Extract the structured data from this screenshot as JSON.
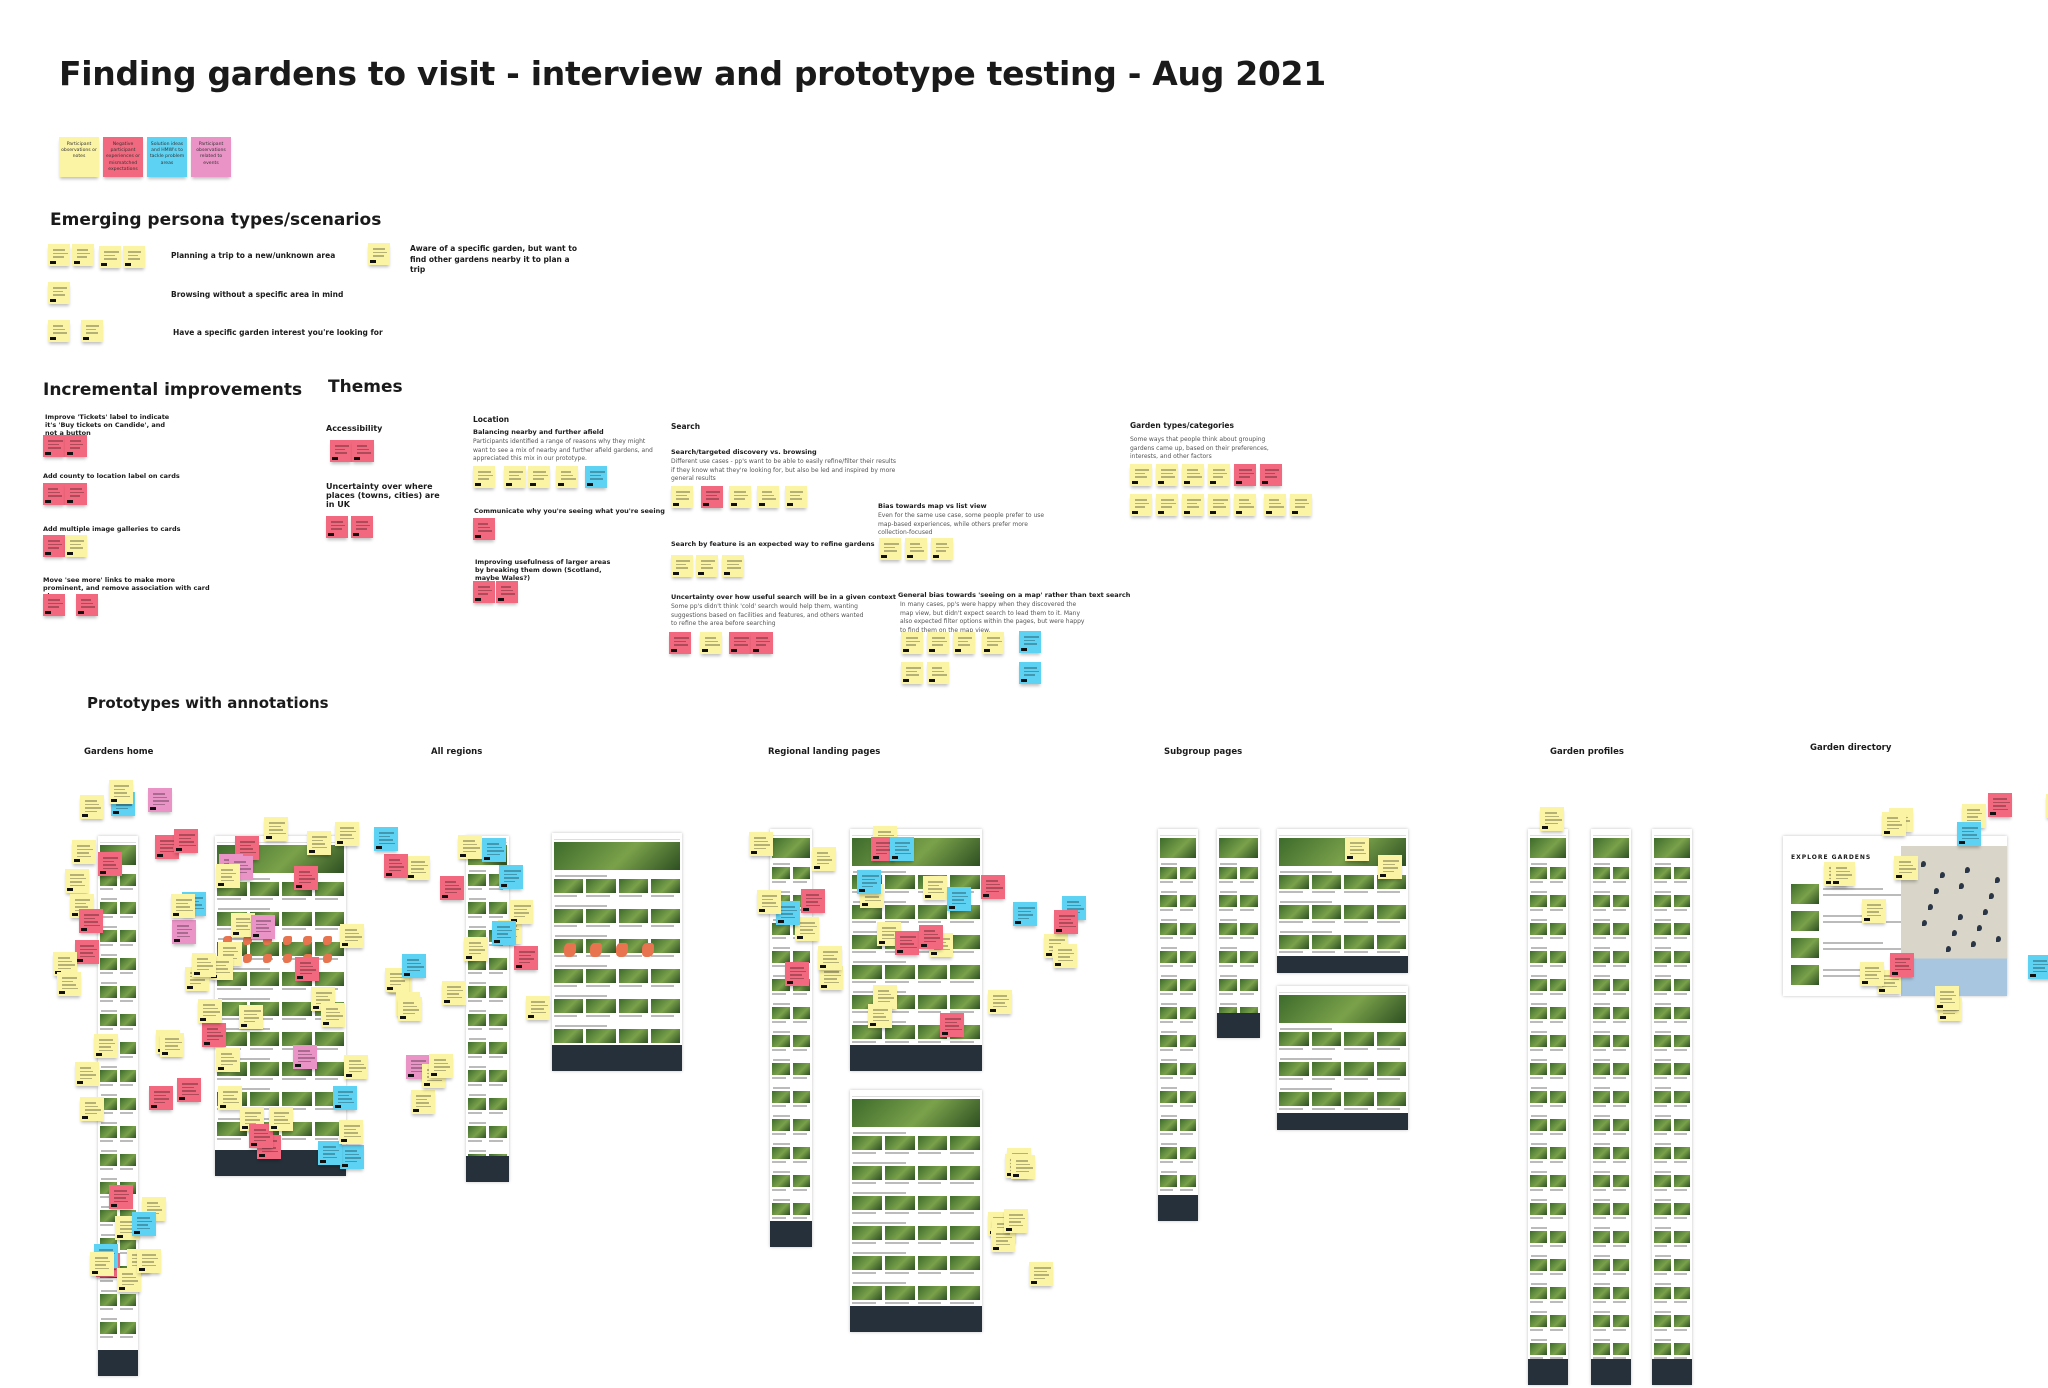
{
  "board": {
    "title": "Finding gardens to visit - interview and prototype testing - Aug 2021",
    "colors": {
      "yellow": "#fbf4a4",
      "red": "#f2687e",
      "blue": "#5ed2f2",
      "pink": "#ea93c6"
    },
    "legend": [
      {
        "label": "Participant observations or notes",
        "color": "yellow"
      },
      {
        "label": "Negative participant experiences or mismatched expectations",
        "color": "red"
      },
      {
        "label": "Solution ideas and HMW's to tackle problem areas",
        "color": "blue"
      },
      {
        "label": "Participant observations related to events",
        "color": "pink"
      }
    ]
  },
  "personas": {
    "heading": "Emerging persona types/scenarios",
    "items": [
      "Planning a trip to a new/unknown area",
      "Browsing without a specific area in mind",
      "Have a specific garden interest you're looking for",
      "Aware of a specific garden, but want to find other gardens nearby it to plan a trip"
    ]
  },
  "improvements": {
    "heading": "Incremental improvements",
    "items": [
      "Improve 'Tickets' label to indicate it's 'Buy tickets on Candide', and not a button",
      "Add county to location label on cards",
      "Add multiple image galleries to cards",
      "Move 'see more' links to make more prominent, and remove association with card above"
    ]
  },
  "themes": {
    "heading": "Themes",
    "accessibility": {
      "heading": "Accessibility",
      "uncertainty": "Uncertainty over where places (towns, cities) are in UK"
    },
    "location": {
      "heading": "Location",
      "sub1": "Balancing nearby and further afield",
      "desc1": "Participants identified a range of reasons why they might want to see a mix of nearby and further afield gardens, and appreciated this mix in our prototype.",
      "sub2": "Communicate why you're seeing what you're seeing",
      "sub3": "Improving usefulness of larger areas by breaking them down (Scotland, maybe Wales?)"
    },
    "search": {
      "heading": "Search",
      "sub1": "Search/targeted discovery vs. browsing",
      "desc1": "Different use cases - pp's want to be able to easily refine/filter their results if they know what they're looking for, but also be led and inspired by more general results",
      "sub2": "Search by feature is an expected way to refine gardens",
      "sub3": "Uncertainty over how useful search will be in a given context",
      "desc3": "Some pp's didn't think 'cold' search would help them, wanting suggestions based on facilities and features, and others wanted to refine the area before searching",
      "sub4": "Bias towards map vs list view",
      "desc4": "Even for the same use case, some people prefer to use map-based experiences, while others prefer more collection-focused",
      "sub5": "General bias towards 'seeing on a map' rather than text search",
      "desc5": "In many cases, pp's were happy when they discovered the map view, but didn't expect search to lead them to it. Many also expected filter options within the pages, but were happy to find them on the map view."
    },
    "types": {
      "heading": "Garden types/categories",
      "desc": "Some ways that people think about grouping gardens came up, based on their preferences, interests, and other factors"
    }
  },
  "prototypes": {
    "heading": "Prototypes with annotations",
    "sections": [
      "Gardens home",
      "All regions",
      "Regional landing pages",
      "Subgroup pages",
      "Garden profiles",
      "Garden directory"
    ],
    "directory_heading": "EXPLORE GARDENS"
  }
}
